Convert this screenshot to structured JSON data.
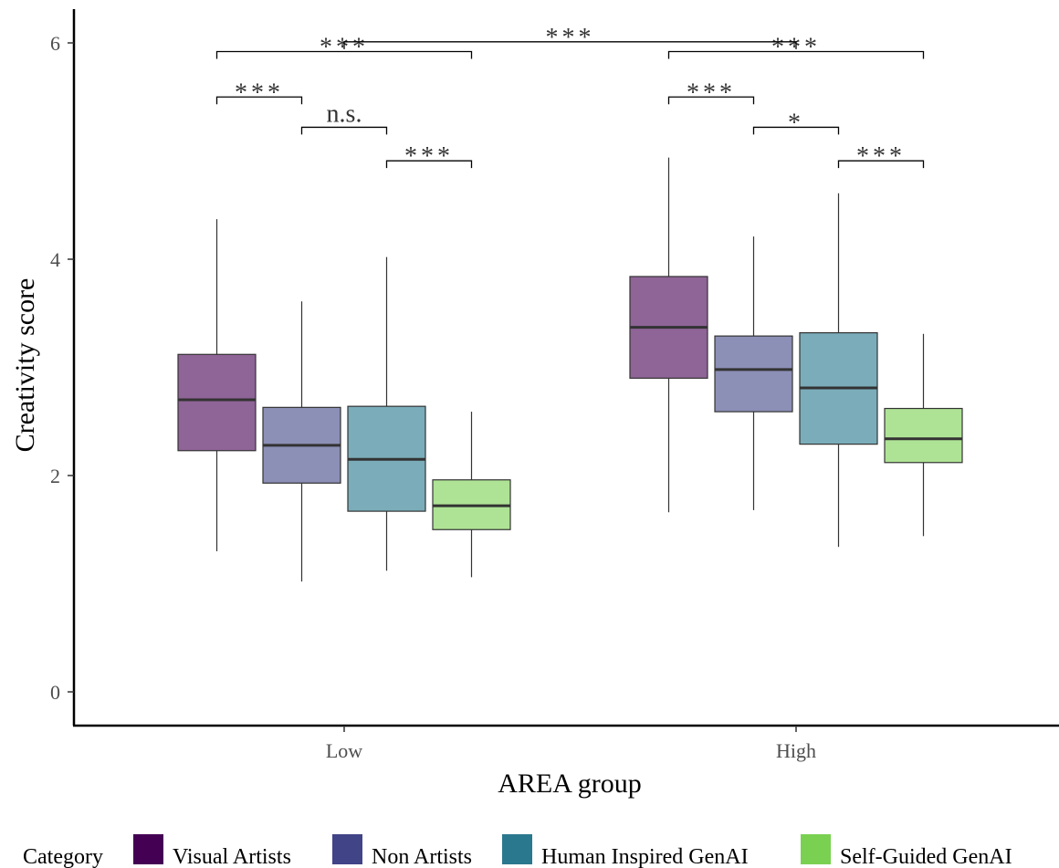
{
  "chart_data": {
    "type": "boxplot",
    "xlabel": "AREA group",
    "ylabel": "Creativity score",
    "ylim": [
      -0.3,
      6.3
    ],
    "yticks": [
      0,
      2,
      4,
      6
    ],
    "categories": [
      "Low",
      "High"
    ],
    "legend": {
      "title": "Category",
      "placement": "bottom"
    },
    "series": [
      {
        "name": "Visual Artists",
        "color": "#440154",
        "fill": "#8f6497",
        "boxes": [
          {
            "group": "Low",
            "whisker_low": 1.3,
            "q1": 2.23,
            "median": 2.7,
            "q3": 3.12,
            "whisker_high": 4.37
          },
          {
            "group": "High",
            "whisker_low": 1.66,
            "q1": 2.9,
            "median": 3.37,
            "q3": 3.84,
            "whisker_high": 4.94
          }
        ]
      },
      {
        "name": "Non Artists",
        "color": "#414487",
        "fill": "#8c8fb6",
        "boxes": [
          {
            "group": "Low",
            "whisker_low": 1.02,
            "q1": 1.93,
            "median": 2.28,
            "q3": 2.63,
            "whisker_high": 3.61
          },
          {
            "group": "High",
            "whisker_low": 1.68,
            "q1": 2.59,
            "median": 2.98,
            "q3": 3.29,
            "whisker_high": 4.21
          }
        ]
      },
      {
        "name": "Human Inspired GenAI",
        "color": "#2a788e",
        "fill": "#7aadb9",
        "boxes": [
          {
            "group": "Low",
            "whisker_low": 1.12,
            "q1": 1.67,
            "median": 2.15,
            "q3": 2.64,
            "whisker_high": 4.02
          },
          {
            "group": "High",
            "whisker_low": 1.34,
            "q1": 2.29,
            "median": 2.81,
            "q3": 3.32,
            "whisker_high": 4.61
          }
        ]
      },
      {
        "name": "Self-Guided GenAI",
        "color": "#7ad151",
        "fill": "#aee395",
        "boxes": [
          {
            "group": "Low",
            "whisker_low": 1.06,
            "q1": 1.5,
            "median": 1.72,
            "q3": 1.96,
            "whisker_high": 2.59
          },
          {
            "group": "High",
            "whisker_low": 1.44,
            "q1": 2.12,
            "median": 2.34,
            "q3": 2.62,
            "whisker_high": 3.31
          }
        ]
      }
    ],
    "significance": [
      {
        "label": "***",
        "group": "Low",
        "from": 0,
        "to": 1,
        "y": 5.5
      },
      {
        "label": "n.s.",
        "group": "Low",
        "from": 1,
        "to": 2,
        "y": 5.22
      },
      {
        "label": "***",
        "group": "Low",
        "from": 2,
        "to": 3,
        "y": 4.91
      },
      {
        "label": "***",
        "group": "Low",
        "from": 0,
        "to": 3,
        "y": 5.92
      },
      {
        "label": "***",
        "group": "High",
        "from": 0,
        "to": 1,
        "y": 5.5
      },
      {
        "label": "*",
        "group": "High",
        "from": 1,
        "to": 2,
        "y": 5.22
      },
      {
        "label": "***",
        "group": "High",
        "from": 2,
        "to": 3,
        "y": 4.91
      },
      {
        "label": "***",
        "group": "High",
        "from": 0,
        "to": 3,
        "y": 5.92
      },
      {
        "label": "***",
        "between": [
          "Low",
          "High"
        ],
        "y": 6.01
      }
    ]
  }
}
